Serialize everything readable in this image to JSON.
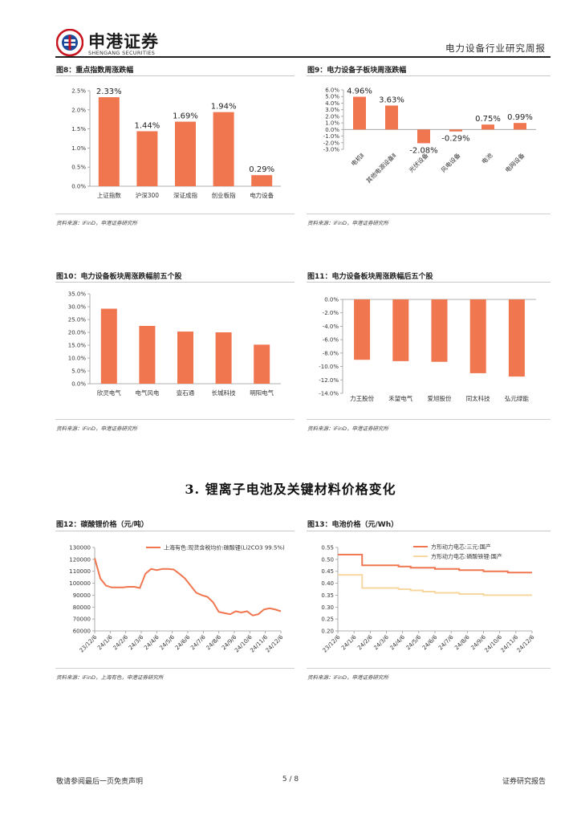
{
  "header": {
    "company_cn": "申港证券",
    "company_en": "SHENGANG SECURITIES",
    "report_type": "电力设备行业研究周报"
  },
  "colors": {
    "bar": "#f07650",
    "line_primary": "#f07650",
    "line_secondary": "#f7d7a0"
  },
  "figures": [
    {
      "title": "图8：重点指数周涨跌幅",
      "source": "资料来源：iFinD，申港证券研究所",
      "chart_data": {
        "type": "bar",
        "categories": [
          "上证指数",
          "沪深300",
          "深证成指",
          "创业板指",
          "电力设备"
        ],
        "values": [
          2.33,
          1.44,
          1.69,
          1.94,
          0.29
        ],
        "value_labels": [
          "2.33%",
          "1.44%",
          "1.69%",
          "1.94%",
          "0.29%"
        ],
        "yticks": [
          "0.0%",
          "0.5%",
          "1.0%",
          "1.5%",
          "2.0%",
          "2.5%"
        ],
        "ylim": [
          0,
          2.5
        ]
      }
    },
    {
      "title": "图9：电力设备子板块周涨跌幅",
      "source": "资料来源：iFinD，申港证券研究所",
      "chart_data": {
        "type": "bar",
        "categories": [
          "电机Ⅱ",
          "其他电源设备Ⅱ",
          "光伏设备",
          "风电设备",
          "电池",
          "电网设备"
        ],
        "values": [
          4.96,
          3.63,
          -2.08,
          -0.29,
          0.75,
          0.99
        ],
        "value_labels": [
          "4.96%",
          "3.63%",
          "-2.08%",
          "-0.29%",
          "0.75%",
          "0.99%"
        ],
        "yticks": [
          "-3.0%",
          "-2.0%",
          "-1.0%",
          "0.0%",
          "1.0%",
          "2.0%",
          "3.0%",
          "4.0%",
          "5.0%",
          "6.0%"
        ],
        "ylim": [
          -3,
          6
        ]
      }
    },
    {
      "title": "图10：电力设备板块周涨跌幅前五个股",
      "source": "资料来源：iFinD，申港证券研究所",
      "chart_data": {
        "type": "bar",
        "categories": [
          "欣灵电气",
          "电气风电",
          "壹石通",
          "长城科技",
          "明阳电气"
        ],
        "values": [
          29.2,
          22.5,
          20.3,
          20.0,
          15.2
        ],
        "yticks": [
          "0.0%",
          "5.0%",
          "10.0%",
          "15.0%",
          "20.0%",
          "25.0%",
          "30.0%",
          "35.0%"
        ],
        "ylim": [
          0,
          35
        ]
      }
    },
    {
      "title": "图11：电力设备板块周涨跌幅后五个股",
      "source": "资料来源：iFinD，申港证券研究所",
      "chart_data": {
        "type": "bar",
        "categories": [
          "力王股份",
          "禾望电气",
          "爱旭股份",
          "同太科技",
          "弘元绿能"
        ],
        "values": [
          -9.0,
          -9.2,
          -9.3,
          -11.0,
          -11.5
        ],
        "yticks": [
          "-14.0%",
          "-12.0%",
          "-10.0%",
          "-8.0%",
          "-6.0%",
          "-4.0%",
          "-2.0%",
          "0.0%"
        ],
        "ylim": [
          -14,
          0
        ]
      }
    }
  ],
  "section_title": "3. 锂离子电池及关键材料价格变化",
  "line_figures": [
    {
      "title": "图12：碳酸锂价格（元/吨）",
      "source": "资料来源：iFinD，上海有色，申港证券研究所",
      "chart_data": {
        "type": "line",
        "x_ticks": [
          "23/12/6",
          "24/1/6",
          "24/2/6",
          "24/3/6",
          "24/4/6",
          "24/5/6",
          "24/6/6",
          "24/7/6",
          "24/8/6",
          "24/9/6",
          "24/10/6",
          "24/11/6",
          "24/12/6"
        ],
        "yticks": [
          "60000",
          "70000",
          "80000",
          "90000",
          "100000",
          "110000",
          "120000",
          "130000"
        ],
        "ylim": [
          60000,
          130000
        ],
        "series": [
          {
            "name": "上海有色:现货含税均价:碳酸锂(Li2CO3 99.5%)",
            "values": [
              121000,
              104000,
              98000,
              96500,
              96500,
              96500,
              97000,
              97000,
              96000,
              108000,
              112000,
              111000,
              112000,
              112000,
              111500,
              108000,
              104000,
              98000,
              92000,
              90000,
              88500,
              84000,
              76000,
              75000,
              74000,
              76500,
              75500,
              76500,
              73000,
              74000,
              78000,
              79000,
              78000,
              76500
            ]
          }
        ]
      }
    },
    {
      "title": "图13：电池价格（元/Wh）",
      "source": "资料来源：iFinD，申港证券研究所",
      "chart_data": {
        "type": "line",
        "x_ticks": [
          "23/12/6",
          "24/1/6",
          "24/2/6",
          "24/3/6",
          "24/4/6",
          "24/5/6",
          "24/6/6",
          "24/7/6",
          "24/8/6",
          "24/9/6",
          "24/10/6",
          "24/11/6",
          "24/12/6"
        ],
        "yticks": [
          "0.20",
          "0.25",
          "0.30",
          "0.35",
          "0.40",
          "0.45",
          "0.50",
          "0.55"
        ],
        "ylim": [
          0.2,
          0.55
        ],
        "series": [
          {
            "name": "方形动力电芯:三元:国产",
            "values": [
              0.52,
              0.52,
              0.475,
              0.475,
              0.475,
              0.47,
              0.465,
              0.465,
              0.46,
              0.46,
              0.455,
              0.455,
              0.45,
              0.45,
              0.445,
              0.445,
              0.445
            ]
          },
          {
            "name": "方形动力电芯:磷酸铁锂:国产",
            "values": [
              0.435,
              0.435,
              0.38,
              0.38,
              0.38,
              0.375,
              0.37,
              0.365,
              0.36,
              0.36,
              0.355,
              0.355,
              0.35,
              0.35,
              0.35,
              0.35,
              0.35
            ]
          }
        ]
      }
    }
  ],
  "footer": {
    "disclaimer": "敬请参阅最后一页免责声明",
    "page": "5 / 8",
    "label": "证券研究报告"
  }
}
